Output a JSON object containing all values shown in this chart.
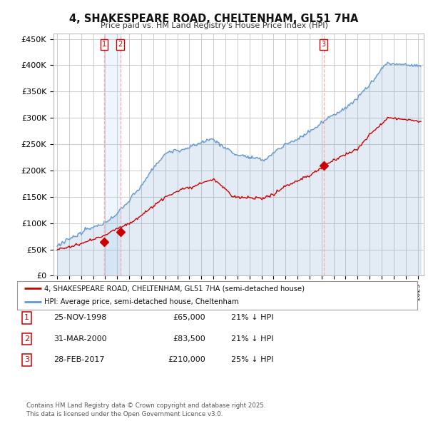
{
  "title": "4, SHAKESPEARE ROAD, CHELTENHAM, GL51 7HA",
  "subtitle": "Price paid vs. HM Land Registry's House Price Index (HPI)",
  "background_color": "#ffffff",
  "plot_bg_color": "#ffffff",
  "grid_color": "#cccccc",
  "ylim": [
    0,
    460000
  ],
  "yticks": [
    0,
    50000,
    100000,
    150000,
    200000,
    250000,
    300000,
    350000,
    400000,
    450000
  ],
  "ytick_labels": [
    "£0",
    "£50K",
    "£100K",
    "£150K",
    "£200K",
    "£250K",
    "£300K",
    "£350K",
    "£400K",
    "£450K"
  ],
  "x_start_year": 1995,
  "x_end_year": 2025,
  "transaction_color": "#cc0000",
  "hpi_color": "#6699cc",
  "hpi_fill_color": "#ddeeff",
  "vline_color": "#ffaaaa",
  "vline_shade_color": "#ddeeff",
  "sale_dates_num": [
    1998.9,
    2000.25,
    2017.17
  ],
  "sale_prices": [
    65000,
    83500,
    210000
  ],
  "sale_labels": [
    "1",
    "2",
    "3"
  ],
  "legend_line1": "4, SHAKESPEARE ROAD, CHELTENHAM, GL51 7HA (semi-detached house)",
  "legend_line2": "HPI: Average price, semi-detached house, Cheltenham",
  "table_data": [
    [
      "1",
      "25-NOV-1998",
      "£65,000",
      "21% ↓ HPI"
    ],
    [
      "2",
      "31-MAR-2000",
      "£83,500",
      "21% ↓ HPI"
    ],
    [
      "3",
      "28-FEB-2017",
      "£210,000",
      "25% ↓ HPI"
    ]
  ],
  "footer_text": "Contains HM Land Registry data © Crown copyright and database right 2025.\nThis data is licensed under the Open Government Licence v3.0."
}
